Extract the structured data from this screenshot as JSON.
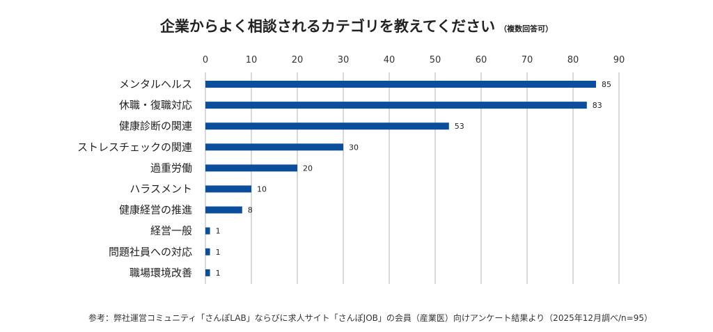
{
  "chart_data": {
    "type": "bar",
    "orientation": "horizontal",
    "title": "企業からよく相談されるカテゴリを教えてください",
    "subtitle": "（複数回答可）",
    "categories": [
      "メンタルヘルス",
      "休職・復職対応",
      "健康診断の関連",
      "ストレスチェックの関連",
      "過重労働",
      "ハラスメント",
      "健康経営の推進",
      "経営一般",
      "問題社員への対応",
      "職場環境改善"
    ],
    "values": [
      85,
      83,
      53,
      30,
      20,
      10,
      8,
      1,
      1,
      1
    ],
    "xlim": [
      0,
      90
    ],
    "xticks": [
      0,
      10,
      20,
      30,
      40,
      50,
      60,
      70,
      80,
      90
    ],
    "xaxis_position": "top",
    "grid": true,
    "data_labels": true,
    "bar_color": "#0b4f9c",
    "grid_color": "#d9d9d9"
  },
  "footnote": "参考：弊社運営コミュニティ「さんぽLAB」ならびに求人サイト「さんぽJOB」の会員（産業医）向けアンケート結果より（2025年12月調べ/n=95）"
}
